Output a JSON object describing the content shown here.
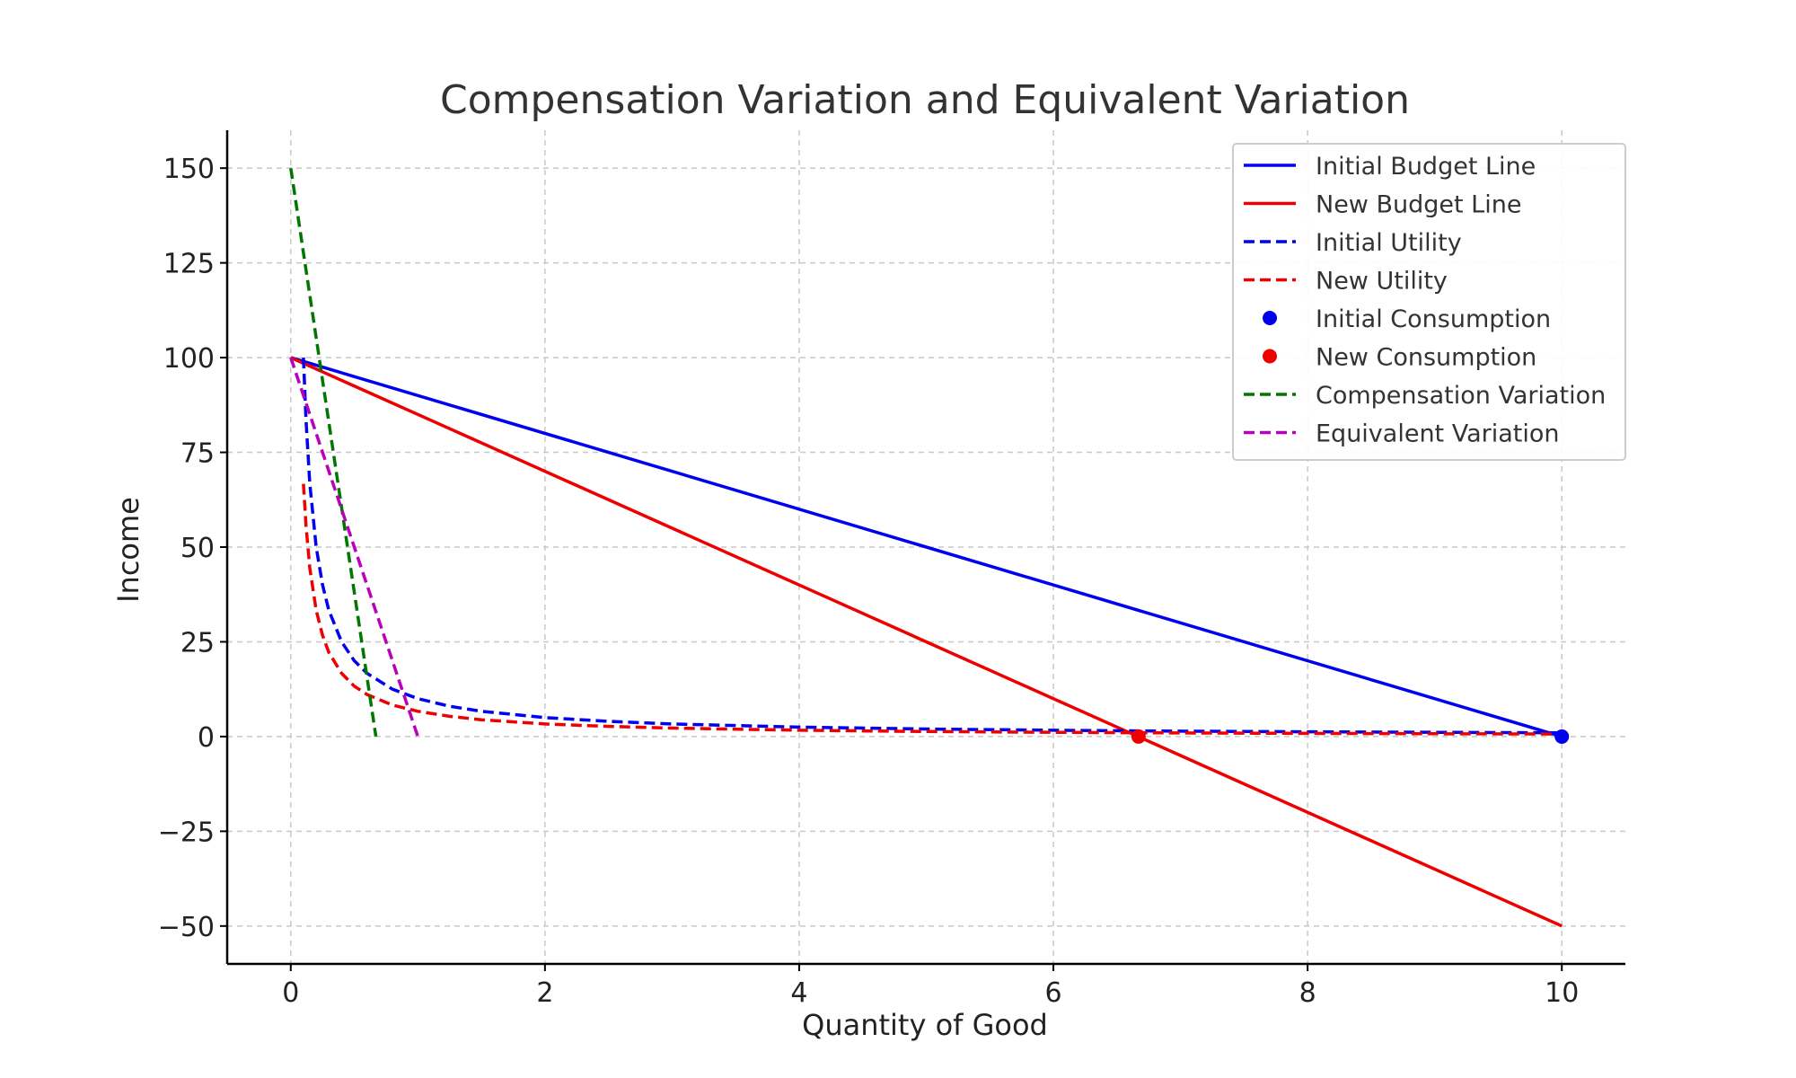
{
  "chart_data": {
    "type": "line",
    "title": "Compensation Variation and Equivalent Variation",
    "xlabel": "Quantity of Good",
    "ylabel": "Income",
    "xlim": [
      -0.5,
      10.5
    ],
    "ylim": [
      -60,
      160
    ],
    "x_ticks": [
      0,
      2,
      4,
      6,
      8,
      10
    ],
    "y_ticks": [
      -50,
      -25,
      0,
      25,
      50,
      75,
      100,
      125,
      150
    ],
    "x_tick_labels": [
      "0",
      "2",
      "4",
      "6",
      "8",
      "10"
    ],
    "y_tick_labels": [
      "−50",
      "−25",
      "0",
      "25",
      "50",
      "75",
      "100",
      "125",
      "150"
    ],
    "grid": true,
    "legend_position": "top-right",
    "series": [
      {
        "name": "Initial Budget Line",
        "kind": "line",
        "style": "solid",
        "color": "#0000ee",
        "points": [
          [
            0,
            100
          ],
          [
            10,
            0
          ]
        ]
      },
      {
        "name": "New Budget Line",
        "kind": "line",
        "style": "solid",
        "color": "#ee0000",
        "points": [
          [
            0,
            100
          ],
          [
            10,
            -50
          ]
        ]
      },
      {
        "name": "Initial Utility",
        "kind": "line",
        "style": "dashed",
        "color": "#0000ee",
        "points": [
          [
            0.1,
            100
          ],
          [
            0.12,
            83.3
          ],
          [
            0.15,
            66.7
          ],
          [
            0.2,
            50
          ],
          [
            0.25,
            40
          ],
          [
            0.3,
            33.3
          ],
          [
            0.4,
            25
          ],
          [
            0.5,
            20
          ],
          [
            0.6,
            16.7
          ],
          [
            0.8,
            12.5
          ],
          [
            1,
            10
          ],
          [
            1.25,
            8
          ],
          [
            1.5,
            6.67
          ],
          [
            2,
            5
          ],
          [
            2.5,
            4
          ],
          [
            3,
            3.33
          ],
          [
            4,
            2.5
          ],
          [
            5,
            2
          ],
          [
            6,
            1.67
          ],
          [
            7,
            1.43
          ],
          [
            8,
            1.25
          ],
          [
            9,
            1.11
          ],
          [
            10,
            1
          ]
        ]
      },
      {
        "name": "New Utility",
        "kind": "line",
        "style": "dashed",
        "color": "#ee0000",
        "points": [
          [
            0.1,
            66.7
          ],
          [
            0.12,
            55.6
          ],
          [
            0.15,
            44.4
          ],
          [
            0.2,
            33.3
          ],
          [
            0.25,
            26.7
          ],
          [
            0.3,
            22.2
          ],
          [
            0.4,
            16.7
          ],
          [
            0.5,
            13.3
          ],
          [
            0.6,
            11.1
          ],
          [
            0.8,
            8.33
          ],
          [
            1,
            6.67
          ],
          [
            1.25,
            5.33
          ],
          [
            1.5,
            4.44
          ],
          [
            2,
            3.33
          ],
          [
            2.5,
            2.67
          ],
          [
            3,
            2.22
          ],
          [
            4,
            1.67
          ],
          [
            5,
            1.33
          ],
          [
            6,
            1.11
          ],
          [
            7,
            0.95
          ],
          [
            8,
            0.83
          ],
          [
            9,
            0.74
          ],
          [
            10,
            0.67
          ]
        ]
      },
      {
        "name": "Initial Consumption",
        "kind": "point",
        "color": "#0000ee",
        "points": [
          [
            10,
            0
          ]
        ]
      },
      {
        "name": "New Consumption",
        "kind": "point",
        "color": "#ee0000",
        "points": [
          [
            6.67,
            0
          ]
        ]
      },
      {
        "name": "Compensation Variation",
        "kind": "line",
        "style": "dashed",
        "color": "#007700",
        "points": [
          [
            0,
            150
          ],
          [
            0.67,
            0
          ]
        ]
      },
      {
        "name": "Equivalent Variation",
        "kind": "line",
        "style": "dashed",
        "color": "#bb00bb",
        "points": [
          [
            0,
            100
          ],
          [
            1,
            0
          ]
        ]
      }
    ]
  }
}
